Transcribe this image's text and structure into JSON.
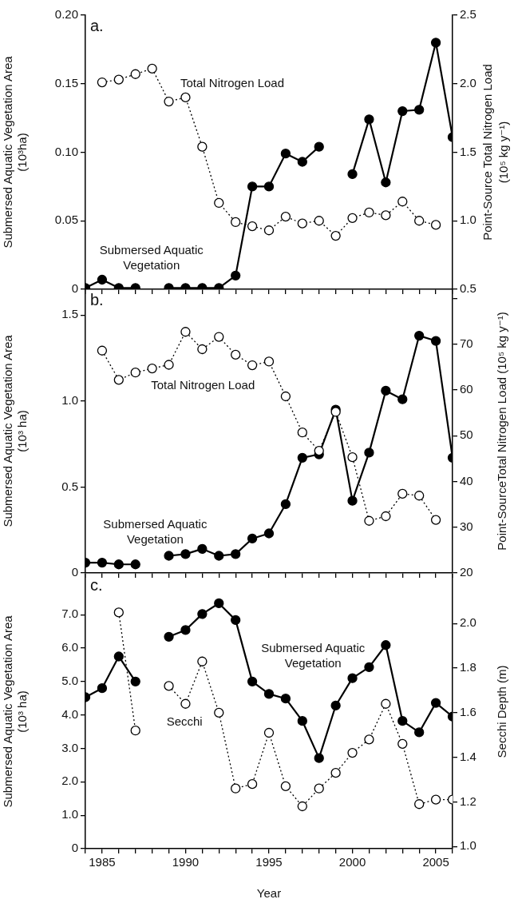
{
  "chart_data": [
    {
      "type": "line",
      "title": "a.",
      "x": [
        1984,
        1985,
        1986,
        1987,
        1988,
        1989,
        1990,
        1991,
        1992,
        1993,
        1994,
        1995,
        1996,
        1997,
        1998,
        1999,
        2000,
        2001,
        2002,
        2003,
        2004,
        2005,
        2006
      ],
      "series": [
        {
          "name": "Submersed Aquatic Vegetation",
          "color": "#000000",
          "marker": "circle",
          "line_style": "solid",
          "values": [
            0.001,
            0.007,
            0.001,
            0.001,
            null,
            0.001,
            0.001,
            0.001,
            0.001,
            0.01,
            0.075,
            0.075,
            0.099,
            0.093,
            0.104,
            null,
            0.084,
            0.124,
            0.078,
            0.13,
            0.131,
            0.18,
            0.111
          ]
        },
        {
          "name": "Total Nitrogen Load",
          "color": "#000000",
          "marker": "circle",
          "line_style": "dotted",
          "axis": "y2",
          "values": [
            null,
            2.01,
            2.03,
            2.07,
            2.11,
            1.87,
            1.9,
            1.54,
            1.13,
            0.99,
            0.96,
            0.93,
            1.03,
            0.98,
            1.0,
            0.89,
            1.02,
            1.06,
            1.04,
            1.14,
            1.0,
            0.97,
            null
          ]
        }
      ],
      "ylabel": "Submersed Aquatic Vegetation Area (10³ha)",
      "y2label": "Point-Source Total Nitrogen Load (10⁵ kg y⁻¹)",
      "xlim": [
        1984,
        2006
      ],
      "xticks": [
        {
          "value": 1984,
          "label": null
        },
        1985,
        {
          "value": 1986,
          "label": null
        },
        {
          "value": 1987,
          "label": null
        },
        {
          "value": 1988,
          "label": null
        },
        {
          "value": 1989,
          "label": null
        },
        1990,
        {
          "value": 1991,
          "label": null
        },
        {
          "value": 1992,
          "label": null
        },
        {
          "value": 1993,
          "label": null
        },
        {
          "value": 1994,
          "label": null
        },
        1995,
        {
          "value": 1996,
          "label": null
        },
        {
          "value": 1997,
          "label": null
        },
        {
          "value": 1998,
          "label": null
        },
        {
          "value": 1999,
          "label": null
        },
        2000,
        {
          "value": 2001,
          "label": null
        },
        {
          "value": 2002,
          "label": null
        },
        {
          "value": 2003,
          "label": null
        },
        {
          "value": 2004,
          "label": null
        },
        2005,
        {
          "value": 2006,
          "label": null
        }
      ],
      "ylim": [
        0,
        0.2
      ],
      "yticks": [
        0,
        0.05,
        {
          "value": 0.1,
          "label": "0.10"
        },
        0.15,
        {
          "value": 0.2,
          "label": "0.20"
        }
      ],
      "y2lim": [
        0.5,
        2.5
      ],
      "y2ticks": [
        0.5,
        {
          "value": 1,
          "label": "1.0"
        },
        1.5,
        {
          "value": 2,
          "label": "2.0"
        },
        2.5
      ],
      "tick_labels": "y",
      "grid": false,
      "legend": false
    },
    {
      "type": "line",
      "title": "b.",
      "x": [
        1984,
        1985,
        1986,
        1987,
        1988,
        1989,
        1990,
        1991,
        1992,
        1993,
        1994,
        1995,
        1996,
        1997,
        1998,
        1999,
        2000,
        2001,
        2002,
        2003,
        2004,
        2005,
        2006
      ],
      "series": [
        {
          "name": "Submersed Aquatic Vegetation",
          "color": "#000000",
          "marker": "circle",
          "line_style": "solid",
          "values": [
            0.06,
            0.06,
            0.05,
            0.05,
            null,
            0.1,
            0.11,
            0.14,
            0.1,
            0.11,
            0.2,
            0.23,
            0.4,
            0.67,
            0.69,
            0.95,
            0.42,
            0.7,
            1.06,
            1.01,
            1.38,
            1.35,
            0.67
          ]
        },
        {
          "name": "Total Nitrogen Load",
          "color": "#000000",
          "marker": "circle",
          "line_style": "dotted",
          "axis": "y2",
          "values": [
            null,
            68.6,
            62.2,
            63.8,
            64.7,
            65.5,
            72.7,
            68.9,
            71.6,
            67.7,
            65.4,
            66.2,
            58.6,
            50.7,
            46.7,
            55.2,
            45.3,
            31.4,
            32.4,
            37.3,
            36.9,
            31.6,
            null
          ]
        }
      ],
      "ylabel": "Submersed Aquatic Vegetation Area (10³ ha)",
      "y2label": "Point-SourceTotal Nitrogen Load (10⁵ kg y⁻¹)",
      "xlim": [
        1984,
        2006
      ],
      "xticks": [
        {
          "value": 1984,
          "label": null
        },
        1985,
        {
          "value": 1986,
          "label": null
        },
        {
          "value": 1987,
          "label": null
        },
        {
          "value": 1988,
          "label": null
        },
        {
          "value": 1989,
          "label": null
        },
        1990,
        {
          "value": 1991,
          "label": null
        },
        {
          "value": 1992,
          "label": null
        },
        {
          "value": 1993,
          "label": null
        },
        {
          "value": 1994,
          "label": null
        },
        1995,
        {
          "value": 1996,
          "label": null
        },
        {
          "value": 1997,
          "label": null
        },
        {
          "value": 1998,
          "label": null
        },
        {
          "value": 1999,
          "label": null
        },
        2000,
        {
          "value": 2001,
          "label": null
        },
        {
          "value": 2002,
          "label": null
        },
        {
          "value": 2003,
          "label": null
        },
        {
          "value": 2004,
          "label": null
        },
        2005,
        {
          "value": 2006,
          "label": null
        }
      ],
      "ylim": [
        0,
        1.65
      ],
      "yticks": [
        0,
        0.5,
        {
          "value": 1,
          "label": "1.0"
        },
        1.5
      ],
      "y2lim": [
        20,
        82
      ],
      "y2ticks": [
        20,
        30,
        40,
        50,
        60,
        70,
        {
          "value": 80,
          "label": null
        }
      ],
      "tick_labels": "y",
      "grid": false,
      "legend": false
    },
    {
      "type": "line",
      "title": "c.",
      "x": [
        1984,
        1985,
        1986,
        1987,
        1988,
        1989,
        1990,
        1991,
        1992,
        1993,
        1994,
        1995,
        1996,
        1997,
        1998,
        1999,
        2000,
        2001,
        2002,
        2003,
        2004,
        2005,
        2006
      ],
      "series": [
        {
          "name": "Submersed Aquatic Vegetation",
          "color": "#000000",
          "marker": "circle",
          "line_style": "solid",
          "values": [
            4.53,
            4.8,
            5.75,
            5.0,
            null,
            6.34,
            6.54,
            7.02,
            7.34,
            6.84,
            5.0,
            4.63,
            4.49,
            3.82,
            2.71,
            4.28,
            5.1,
            5.43,
            6.09,
            3.82,
            3.48,
            4.36,
            3.95
          ]
        },
        {
          "name": "Secchi",
          "color": "#000000",
          "marker": "circle",
          "line_style": "dotted",
          "axis": "y2",
          "values": [
            null,
            null,
            2.05,
            1.52,
            null,
            1.72,
            1.64,
            1.83,
            1.6,
            1.26,
            1.28,
            1.51,
            1.27,
            1.18,
            1.26,
            1.33,
            1.42,
            1.48,
            1.64,
            1.46,
            1.19,
            1.21,
            1.21
          ]
        }
      ],
      "xlabel": "Year",
      "ylabel": "Submersed Aquatic Vegetation Area (10³ ha)",
      "y2label": "Secchi Depth (m)",
      "xlim": [
        1984,
        2006
      ],
      "xticks": [
        {
          "value": 1984,
          "label": null
        },
        1985,
        {
          "value": 1986,
          "label": null
        },
        {
          "value": 1987,
          "label": null
        },
        {
          "value": 1988,
          "label": null
        },
        {
          "value": 1989,
          "label": null
        },
        1990,
        {
          "value": 1991,
          "label": null
        },
        {
          "value": 1992,
          "label": null
        },
        {
          "value": 1993,
          "label": null
        },
        {
          "value": 1994,
          "label": null
        },
        1995,
        {
          "value": 1996,
          "label": null
        },
        {
          "value": 1997,
          "label": null
        },
        {
          "value": 1998,
          "label": null
        },
        {
          "value": 1999,
          "label": null
        },
        2000,
        {
          "value": 2001,
          "label": null
        },
        {
          "value": 2002,
          "label": null
        },
        {
          "value": 2003,
          "label": null
        },
        {
          "value": 2004,
          "label": null
        },
        2005,
        {
          "value": 2006,
          "label": null
        }
      ],
      "ylim": [
        0,
        8.2
      ],
      "yticks": [
        0,
        {
          "value": 1,
          "label": "1.0"
        },
        {
          "value": 2,
          "label": "2.0"
        },
        {
          "value": 3,
          "label": "3.0"
        },
        {
          "value": 4,
          "label": "4.0"
        },
        {
          "value": 5,
          "label": "5.0"
        },
        {
          "value": 6,
          "label": "6.0"
        },
        {
          "value": 7,
          "label": "7.0"
        }
      ],
      "y2lim": [
        0.99,
        2.22
      ],
      "y2ticks": [
        {
          "value": 1,
          "label": "1.0"
        },
        1.2,
        1.4,
        1.6,
        1.8,
        {
          "value": 2,
          "label": "2.0"
        }
      ],
      "grid": false,
      "legend": false
    }
  ]
}
